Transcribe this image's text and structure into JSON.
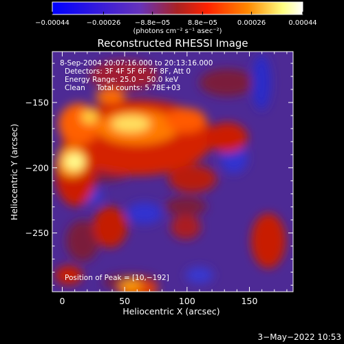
{
  "chart_data": {
    "type": "heatmap",
    "title": "Reconstructed RHESSI Image",
    "xlabel": "Heliocentric X (arcsec)",
    "ylabel": "Heliocentric Y (arcsec)",
    "xlim": [
      -8,
      185
    ],
    "ylim": [
      -295,
      -111
    ],
    "x_ticks": [
      0,
      50,
      100,
      150
    ],
    "x_tick_labels": [
      "0",
      "50",
      "100",
      "150"
    ],
    "y_ticks": [
      -150,
      -200,
      -250
    ],
    "y_tick_labels": [
      "−150",
      "−200",
      "−250"
    ],
    "colorbar": {
      "range": [
        -0.00044,
        0.00044
      ],
      "ticks": [
        -0.00044,
        -0.00026,
        -8.8e-05,
        8.8e-05,
        0.00026,
        0.00044
      ],
      "tick_labels": [
        "−0.00044",
        "−0.00026",
        "−8.8e−05",
        "8.8e−05",
        "0.00026",
        "0.00044"
      ],
      "unit_label": "(photons cm⁻² s⁻¹ asec⁻²)",
      "colors": [
        "#0000ff",
        "#6633bb",
        "#aa2222",
        "#ff2200",
        "#ff8800",
        "#ffff80",
        "#ffffff"
      ]
    },
    "annotations": [
      "8-Sep-2004 20:07:16.000 to 20:13:16.000",
      "Detectors: 3F 4F 5F 6F 7F 8F, Att 0",
      "Energy Range: 25.0 − 50.0 keV",
      "Clean     Total counts: 5.78E+03"
    ],
    "peak_label": "Position of Peak = [10,−192]",
    "peak_position": [
      10,
      -192
    ],
    "grid": false
  },
  "footer": {
    "timestamp": "3−May−2022 10:53"
  }
}
